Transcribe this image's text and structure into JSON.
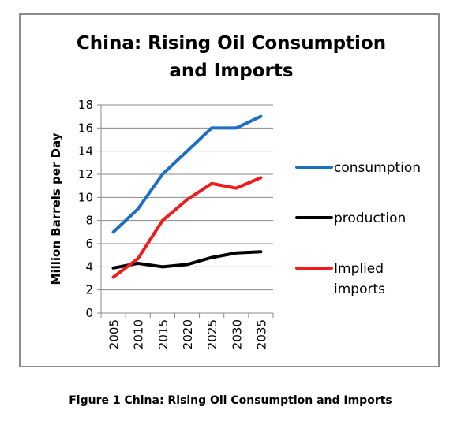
{
  "chart_data": {
    "type": "line",
    "title": "China: Rising Oil Consumption and Imports",
    "title_lines": [
      "China: Rising Oil Consumption",
      "and Imports"
    ],
    "ylabel": "Million Barrels per Day",
    "xlabel": "",
    "x": [
      "2005",
      "2010",
      "2015",
      "2020",
      "2025",
      "2030",
      "2035"
    ],
    "ylim": [
      0,
      18
    ],
    "yticks": [
      0,
      2,
      4,
      6,
      8,
      10,
      12,
      14,
      16,
      18
    ],
    "grid": "horizontal",
    "legend": "right",
    "series": [
      {
        "name": "consumption",
        "legend_lines": [
          "consumption"
        ],
        "color": "#1f6fbf",
        "values": [
          7.0,
          9.0,
          12.0,
          14.0,
          16.0,
          16.0,
          17.0
        ]
      },
      {
        "name": "production",
        "legend_lines": [
          "production"
        ],
        "color": "#000000",
        "values": [
          3.9,
          4.3,
          4.0,
          4.2,
          4.8,
          5.2,
          5.3
        ]
      },
      {
        "name": "Implied imports",
        "legend_lines": [
          "Implied",
          "imports"
        ],
        "color": "#ee1c1c",
        "values": [
          3.1,
          4.7,
          8.0,
          9.8,
          11.2,
          10.8,
          11.7
        ]
      }
    ]
  },
  "caption": {
    "label": "Figure 1",
    "text": "China: Rising Oil Consumption and Imports"
  }
}
